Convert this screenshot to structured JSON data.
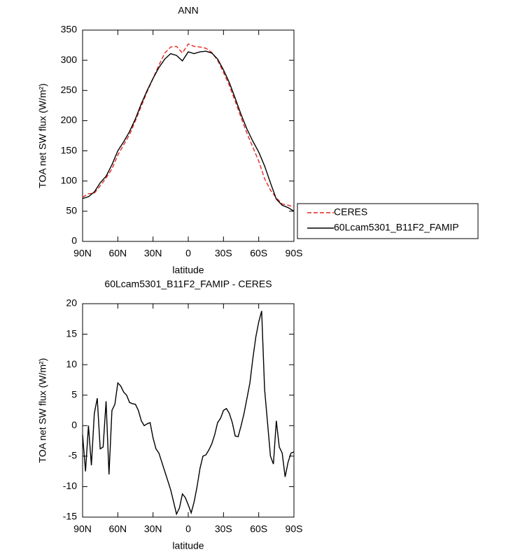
{
  "chart_data": [
    {
      "type": "line",
      "title": "ANN",
      "xlabel": "latitude",
      "ylabel": "TOA net SW flux (W/m²)",
      "x": [
        90,
        85,
        80,
        75,
        70,
        65,
        60,
        55,
        50,
        45,
        40,
        35,
        30,
        25,
        20,
        15,
        10,
        5,
        0,
        -5,
        -10,
        -15,
        -20,
        -25,
        -30,
        -35,
        -40,
        -45,
        -50,
        -55,
        -60,
        -65,
        -70,
        -75,
        -80,
        -85,
        -90
      ],
      "series": [
        {
          "name": "CERES",
          "color": "#e8261f",
          "linestyle": "dashed",
          "values": [
            73,
            79,
            80,
            92,
            105,
            120,
            143,
            160,
            177,
            200,
            224,
            248,
            270,
            292,
            312,
            322,
            323,
            312,
            327,
            323,
            322,
            320,
            313,
            300,
            280,
            258,
            232,
            205,
            179,
            156,
            133,
            104,
            85,
            72,
            62,
            60,
            57
          ]
        },
        {
          "name": "60Lcam5301_B11F2_FAMIP",
          "color": "#000000",
          "linestyle": "solid",
          "values": [
            71,
            74,
            82,
            97,
            108,
            127,
            150,
            165,
            182,
            203,
            228,
            250,
            270,
            288,
            302,
            311,
            308,
            299,
            314,
            311,
            314,
            315,
            312,
            302,
            284,
            263,
            237,
            210,
            186,
            166,
            148,
            125,
            97,
            70,
            60,
            56,
            50
          ]
        }
      ],
      "xlim": [
        90,
        -90
      ],
      "xticks": [
        {
          "value": 90,
          "label": "90N"
        },
        {
          "value": 60,
          "label": "60N"
        },
        {
          "value": 30,
          "label": "30N"
        },
        0,
        {
          "value": -30,
          "label": "30S"
        },
        {
          "value": -60,
          "label": "60S"
        },
        {
          "value": -90,
          "label": "90S"
        }
      ],
      "ylim": [
        0,
        350
      ],
      "yticks": [
        0,
        50,
        100,
        150,
        200,
        250,
        300,
        350
      ],
      "legend": "outside-right"
    },
    {
      "type": "line",
      "title": "60Lcam5301_B11F2_FAMIP - CERES",
      "xlabel": "latitude",
      "ylabel": "TOA net SW flux (W/m²)",
      "x": [
        90,
        87.5,
        85,
        82.5,
        80,
        77.5,
        75,
        72.5,
        70,
        67.5,
        65,
        62.5,
        60,
        57.5,
        55,
        52.5,
        50,
        47.5,
        45,
        42.5,
        40,
        37.5,
        35,
        32.5,
        30,
        27.5,
        25,
        22.5,
        20,
        17.5,
        15,
        12.5,
        10,
        7.5,
        5,
        2.5,
        0,
        -2.5,
        -5,
        -7.5,
        -10,
        -12.5,
        -15,
        -17.5,
        -20,
        -22.5,
        -25,
        -27.5,
        -30,
        -32.5,
        -35,
        -37.5,
        -40,
        -42.5,
        -45,
        -47.5,
        -50,
        -52.5,
        -55,
        -57.5,
        -60,
        -62.5,
        -65,
        -67.5,
        -70,
        -72.5,
        -75,
        -77.5,
        -80,
        -82.5,
        -85,
        -87.5,
        -90
      ],
      "values": [
        -1.5,
        -7.5,
        0,
        -6.5,
        2,
        4.5,
        -3.8,
        -3.5,
        4,
        -8,
        2.5,
        3.5,
        7,
        6.5,
        5.5,
        5,
        3.8,
        3.6,
        3.5,
        2.5,
        0.8,
        0,
        0.3,
        0.5,
        -2,
        -3.8,
        -4.5,
        -6,
        -7.5,
        -9,
        -10.5,
        -12.5,
        -14.5,
        -13.5,
        -11.2,
        -11.8,
        -13,
        -14.3,
        -12.5,
        -10,
        -7,
        -5,
        -4.8,
        -4,
        -3,
        -1.5,
        0.5,
        1.2,
        2.5,
        2.8,
        2,
        0.5,
        -1.7,
        -1.8,
        0,
        2,
        4.5,
        7,
        11,
        14.5,
        17,
        18.8,
        6,
        0.5,
        -5,
        -6.3,
        0.8,
        -3.5,
        -4.5,
        -8.4,
        -6,
        -4.5,
        -4.3
      ],
      "color": "#000000",
      "xlim": [
        90,
        -90
      ],
      "xticks": [
        {
          "value": 90,
          "label": "90N"
        },
        {
          "value": 60,
          "label": "60N"
        },
        {
          "value": 30,
          "label": "30N"
        },
        0,
        {
          "value": -30,
          "label": "30S"
        },
        {
          "value": -60,
          "label": "60S"
        },
        {
          "value": -90,
          "label": "90S"
        }
      ],
      "ylim": [
        -15,
        20
      ],
      "yticks": [
        -15,
        -10,
        -5,
        0,
        5,
        10,
        15,
        20
      ]
    }
  ]
}
